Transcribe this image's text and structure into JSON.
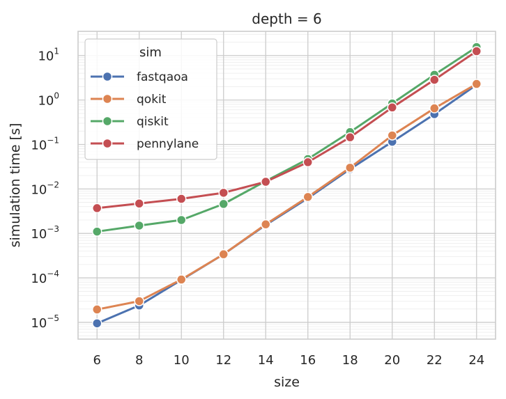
{
  "chart_data": {
    "type": "line",
    "title": "depth = 6",
    "xlabel": "size",
    "ylabel": "simulation time [s]",
    "yscale": "log",
    "xlim": [
      5.1,
      24.9
    ],
    "ylim": [
      4.2e-06,
      35
    ],
    "grid": true,
    "legend_title": "sim",
    "legend_position": "top-left",
    "x": [
      6,
      8,
      10,
      12,
      14,
      16,
      18,
      20,
      22,
      24
    ],
    "x_ticks": [
      "6",
      "8",
      "10",
      "12",
      "14",
      "16",
      "18",
      "20",
      "22",
      "24"
    ],
    "y_ticks": [
      {
        "base": "10",
        "exp": "−5",
        "value": 1e-05
      },
      {
        "base": "10",
        "exp": "−4",
        "value": 0.0001
      },
      {
        "base": "10",
        "exp": "−3",
        "value": 0.001
      },
      {
        "base": "10",
        "exp": "−2",
        "value": 0.01
      },
      {
        "base": "10",
        "exp": "−1",
        "value": 0.1
      },
      {
        "base": "10",
        "exp": "0",
        "value": 1
      },
      {
        "base": "10",
        "exp": "1",
        "value": 10
      }
    ],
    "series": [
      {
        "name": "fastqaoa",
        "color": "#4c72b0",
        "values": [
          9.5e-06,
          2.4e-05,
          9e-05,
          0.00034,
          0.00155,
          0.0062,
          0.028,
          0.115,
          0.48,
          2.2
        ]
      },
      {
        "name": "qokit",
        "color": "#dd8452",
        "values": [
          1.95e-05,
          3e-05,
          9.2e-05,
          0.00034,
          0.0016,
          0.0066,
          0.03,
          0.16,
          0.65,
          2.3
        ]
      },
      {
        "name": "qiskit",
        "color": "#55a868",
        "values": [
          0.0011,
          0.0015,
          0.002,
          0.0046,
          0.015,
          0.047,
          0.19,
          0.84,
          3.7,
          15.5
        ]
      },
      {
        "name": "pennylane",
        "color": "#c44e52",
        "values": [
          0.0037,
          0.0047,
          0.006,
          0.0082,
          0.0145,
          0.04,
          0.145,
          0.68,
          2.85,
          12.5
        ]
      }
    ]
  }
}
